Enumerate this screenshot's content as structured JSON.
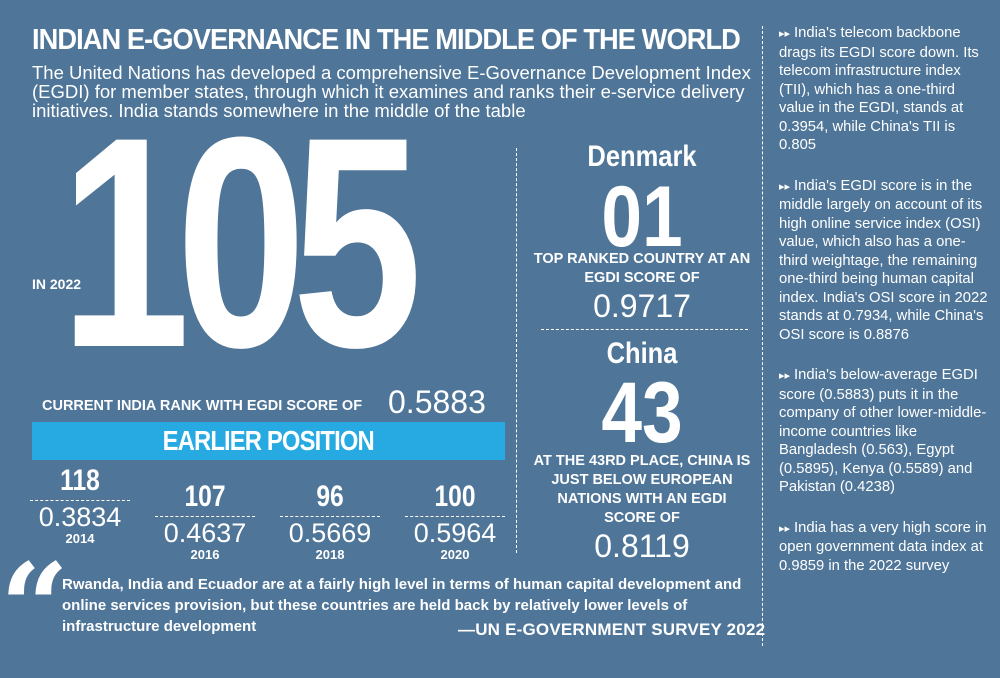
{
  "title": "INDIAN E-GOVERNANCE IN THE MIDDLE OF THE WORLD",
  "intro": "The United Nations has developed a comprehensive E-Governance Development Index (EGDI) for member states, through which it examines and ranks their e-service delivery initiatives. India stands somewhere in the middle of the table",
  "india": {
    "rank": "105",
    "year_label": "IN 2022",
    "current_label": "CURRENT INDIA RANK WITH EGDI SCORE OF",
    "current_score": "0.5883"
  },
  "earlier": {
    "header": "EARLIER POSITION",
    "items": [
      {
        "rank": "118",
        "score": "0.3834",
        "year": "2014"
      },
      {
        "rank": "107",
        "score": "0.4637",
        "year": "2016"
      },
      {
        "rank": "96",
        "score": "0.5669",
        "year": "2018"
      },
      {
        "rank": "100",
        "score": "0.5964",
        "year": "2020"
      }
    ]
  },
  "denmark": {
    "name": "Denmark",
    "rank": "01",
    "caption": "TOP RANKED COUNTRY AT AN EGDI SCORE OF",
    "score": "0.9717"
  },
  "china": {
    "name": "China",
    "rank": "43",
    "caption": "AT THE 43RD PLACE, CHINA IS JUST BELOW EUROPEAN NATIONS WITH AN EGDI SCORE OF",
    "score": "0.8119"
  },
  "bullets": [
    "India's telecom backbone drags its EGDI score down. Its telecom infrastructure index (TII), which has a one-third value in the EGDI, stands at 0.3954, while China's TII is 0.805",
    "India's EGDI score is in the middle largely on account of its high online service index (OSI) value, which also has a one-third weightage, the remaining one-third being human capital index. India's OSI score in 2022 stands at 0.7934, while China's OSI score is 0.8876",
    "India's below-average EGDI score (0.5883) puts it in the company of other lower-middle-income countries like Bangladesh (0.563), Egypt (0.5895), Kenya (0.5589) and Pakistan (0.4238)",
    "India has a very high score in open government data index at 0.9859 in the 2022 survey"
  ],
  "bullet_glyph": "▸▸",
  "quote": {
    "mark": "“",
    "text": "Rwanda, India and Ecuador are at a fairly high level in terms of human capital development and online services provision, but these countries are held back by relatively lower levels of infrastructure development",
    "source": "—UN E-GOVERNMENT SURVEY 2022"
  },
  "colors": {
    "background": "#4f7598",
    "accent_bar": "#27aae1",
    "text": "#ffffff"
  }
}
